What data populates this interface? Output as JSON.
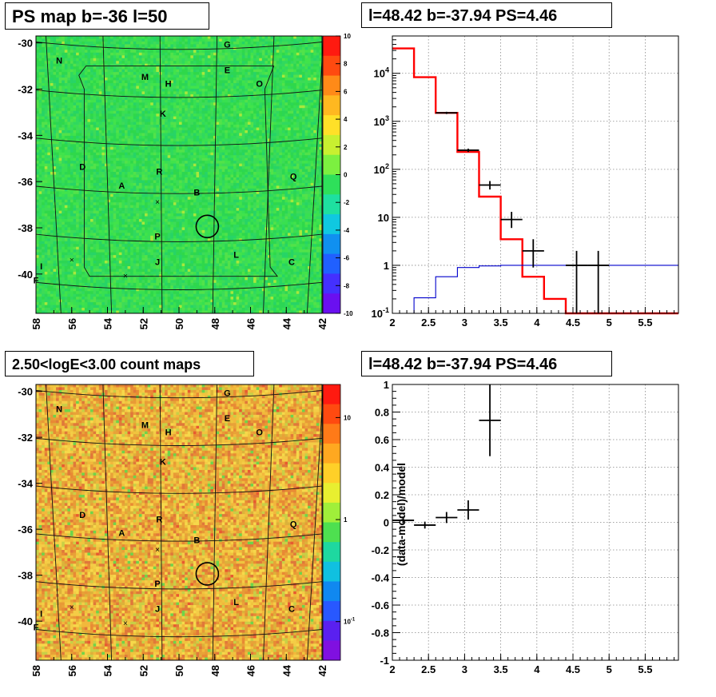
{
  "titles": {
    "map_top": "PS map b=-36 l=50",
    "spec_top": "l=48.42 b=-37.94 PS=4.46",
    "map_bottom": "2.50<logE<3.00 count maps",
    "spec_bottom": "l=48.42 b=-37.94 PS=4.46"
  },
  "colors": {
    "data": "#000000",
    "model": "#ff0000",
    "exposure": "#0000cc"
  },
  "chart_data": [
    {
      "type": "heatmap",
      "name": "ps-map",
      "title": "PS map b=-36 l=50",
      "xlim": [
        58,
        42
      ],
      "ylim": [
        -41.7,
        -29.7
      ],
      "x_ticks": [
        "58",
        "56",
        "54",
        "52",
        "50",
        "48",
        "46",
        "44",
        "42"
      ],
      "y_ticks": [
        "-30",
        "-32",
        "-34",
        "-36",
        "-38",
        "-40"
      ],
      "colorbar": {
        "min": -10,
        "max": 10,
        "ticks": [
          "10",
          "8",
          "6",
          "4",
          "2",
          "0",
          "-2",
          "-4",
          "-6",
          "-8",
          "-10"
        ]
      },
      "source_labels": [
        {
          "t": "G",
          "l": 47.3,
          "b": -30.2
        },
        {
          "t": "N",
          "l": 56.7,
          "b": -30.9
        },
        {
          "t": "E",
          "l": 47.3,
          "b": -31.3
        },
        {
          "t": "M",
          "l": 51.9,
          "b": -31.6
        },
        {
          "t": "O",
          "l": 45.5,
          "b": -31.9
        },
        {
          "t": "H",
          "l": 50.6,
          "b": -31.9
        },
        {
          "t": "K",
          "l": 50.9,
          "b": -33.2
        },
        {
          "t": "D",
          "l": 55.4,
          "b": -35.5
        },
        {
          "t": "R",
          "l": 51.1,
          "b": -35.7
        },
        {
          "t": "Q",
          "l": 43.6,
          "b": -35.9
        },
        {
          "t": "A",
          "l": 53.2,
          "b": -36.3
        },
        {
          "t": "B",
          "l": 49.0,
          "b": -36.6
        },
        {
          "t": "P",
          "l": 51.2,
          "b": -38.5
        },
        {
          "t": "L",
          "l": 46.8,
          "b": -39.3
        },
        {
          "t": "J",
          "l": 51.2,
          "b": -39.6
        },
        {
          "t": "C",
          "l": 43.7,
          "b": -39.6
        },
        {
          "t": "I",
          "l": 57.7,
          "b": -39.8
        },
        {
          "t": "F",
          "l": 58.0,
          "b": -40.4
        }
      ]
    },
    {
      "type": "line",
      "name": "spectrum",
      "title": "l=48.42 b=-37.94 PS=4.46",
      "xlim": [
        2,
        5.96
      ],
      "ylim": [
        0.1,
        60000
      ],
      "ylog": true,
      "x_ticks": [
        "2",
        "2.5",
        "3",
        "3.5",
        "4",
        "4.5",
        "5",
        "5.5"
      ],
      "y_ticks": [
        "10^-1",
        "1",
        "10",
        "10^2",
        "10^3",
        "10^4"
      ],
      "series": [
        {
          "role": "model",
          "style": "step",
          "edges": [
            2.0,
            2.3,
            2.6,
            2.9,
            3.2,
            3.5,
            3.8,
            4.1,
            4.4,
            4.7,
            5.0,
            5.96
          ],
          "values": [
            33000,
            8300,
            1500,
            230,
            27,
            3.5,
            0.58,
            0.2,
            0.04,
            0.015,
            0.1,
            0.1
          ]
        },
        {
          "role": "exposure",
          "style": "step",
          "edges": [
            2.3,
            2.6,
            2.9,
            3.2,
            3.5,
            3.8,
            4.1,
            4.4,
            4.7,
            5.0,
            5.96
          ],
          "values": [
            0.21,
            0.58,
            0.9,
            0.97,
            1.0,
            1.0,
            1.0,
            1.0,
            1.0,
            1.0
          ]
        },
        {
          "role": "data",
          "style": "errorbars",
          "points": [
            {
              "x": 2.75,
              "y": 1500,
              "lo": 1420,
              "hi": 1580,
              "xlo": 2.6,
              "xhi": 2.9
            },
            {
              "x": 3.05,
              "y": 250,
              "lo": 230,
              "hi": 270,
              "xlo": 2.9,
              "xhi": 3.2
            },
            {
              "x": 3.35,
              "y": 47,
              "lo": 38,
              "hi": 57,
              "xlo": 3.2,
              "xhi": 3.5
            },
            {
              "x": 3.65,
              "y": 9,
              "lo": 6,
              "hi": 13,
              "xlo": 3.5,
              "xhi": 3.8
            },
            {
              "x": 3.95,
              "y": 2,
              "lo": 0.9,
              "hi": 3.5,
              "xlo": 3.8,
              "xhi": 4.1
            },
            {
              "x": 4.55,
              "y": 1,
              "lo": 0.1,
              "hi": 2,
              "xlo": 4.4,
              "xhi": 4.7
            },
            {
              "x": 4.85,
              "y": 1,
              "lo": 0.1,
              "hi": 2,
              "xlo": 4.7,
              "xhi": 5.0
            }
          ]
        }
      ]
    },
    {
      "type": "heatmap",
      "name": "count-map",
      "title": "2.50<logE<3.00 count maps",
      "xlim": [
        58,
        42
      ],
      "ylim": [
        -41.7,
        -29.7
      ],
      "x_ticks": [
        "58",
        "56",
        "54",
        "52",
        "50",
        "48",
        "46",
        "44",
        "42"
      ],
      "y_ticks": [
        "-30",
        "-32",
        "-34",
        "-36",
        "-38",
        "-40"
      ],
      "colorbar": {
        "log": true,
        "ticks": [
          "10",
          "1",
          "10^-1"
        ]
      }
    },
    {
      "type": "scatter",
      "name": "residuals",
      "title": "l=48.42 b=-37.94 PS=4.46",
      "ylabel": "(data-model)/model",
      "xlim": [
        2,
        5.96
      ],
      "ylim": [
        -1,
        1
      ],
      "x_ticks": [
        "2",
        "2.5",
        "3",
        "3.5",
        "4",
        "4.5",
        "5",
        "5.5"
      ],
      "y_ticks": [
        "1",
        "0.8",
        "0.6",
        "0.4",
        "0.2",
        "0",
        "-0.2",
        "-0.4",
        "-0.6",
        "-0.8",
        "-1"
      ],
      "points": [
        {
          "x": 2.15,
          "y": 0.015,
          "err": 0.02,
          "xlo": 2.0,
          "xhi": 2.3
        },
        {
          "x": 2.45,
          "y": -0.02,
          "err": 0.025,
          "xlo": 2.3,
          "xhi": 2.6
        },
        {
          "x": 2.75,
          "y": 0.035,
          "err": 0.04,
          "xlo": 2.6,
          "xhi": 2.9
        },
        {
          "x": 3.05,
          "y": 0.09,
          "err": 0.07,
          "xlo": 2.9,
          "xhi": 3.2
        },
        {
          "x": 3.35,
          "y": 0.74,
          "err": 0.26,
          "xlo": 3.2,
          "xhi": 3.5
        }
      ]
    }
  ]
}
